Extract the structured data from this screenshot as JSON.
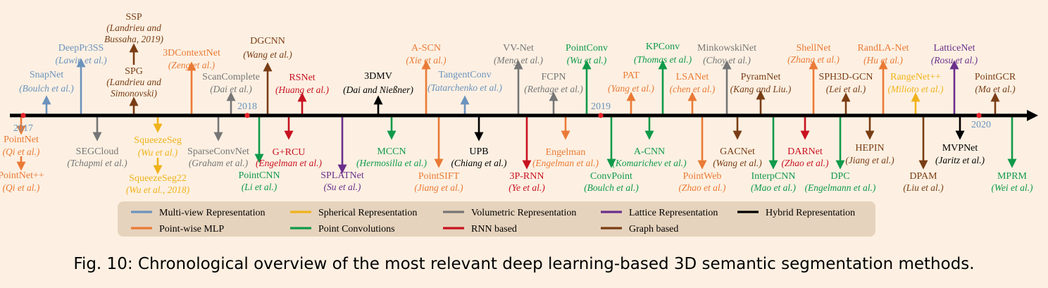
{
  "figure": {
    "caption": "Fig. 10: Chronological overview of the most relevant deep learning-based 3D semantic segmentation methods."
  },
  "colors": {
    "multiview": "#6b93bd",
    "spherical": "#f0b21a",
    "volumetric": "#767676",
    "lattice": "#6a2f8c",
    "hybrid": "#000000",
    "pointwise": "#ea7a35",
    "pointconv": "#0f9a4a",
    "rnn": "#c81220",
    "graph": "#7a3d14"
  },
  "legend": {
    "row1": [
      {
        "key": "multiview",
        "label": "Multi-view Representation"
      },
      {
        "key": "spherical",
        "label": "Spherical Representation"
      },
      {
        "key": "volumetric",
        "label": "Volumetric Representation"
      },
      {
        "key": "lattice",
        "label": "Lattice Representation"
      },
      {
        "key": "hybrid",
        "label": "Hybrid Representation"
      }
    ],
    "row2": [
      {
        "key": "pointwise",
        "label": "Point-wise MLP"
      },
      {
        "key": "pointconv",
        "label": "Point Convolutions"
      },
      {
        "key": "rnn",
        "label": "RNN based"
      },
      {
        "key": "graph",
        "label": "Graph based"
      }
    ]
  },
  "years": [
    "2017",
    "2018",
    "2019",
    "2020"
  ],
  "methods": [
    {
      "name": "SnapNet",
      "authors": "Boulch et al.",
      "cat": "multiview",
      "side": "up"
    },
    {
      "name": "DeepPr3SS",
      "authors": "Lawin et al.",
      "cat": "multiview",
      "side": "up"
    },
    {
      "name": "SPG",
      "authors": "Landrieu and Simonovski",
      "cat": "graph",
      "side": "up"
    },
    {
      "name": "SSP",
      "authors": "Landrieu and Bussaha, 2019",
      "cat": "graph",
      "side": "up"
    },
    {
      "name": "3DContextNet",
      "authors": "Zeng et al.",
      "cat": "pointwise",
      "side": "up"
    },
    {
      "name": "ScanComplete",
      "authors": "Dai et al.",
      "cat": "volumetric",
      "side": "up"
    },
    {
      "name": "DGCNN",
      "authors": "Wang et al.",
      "cat": "graph",
      "side": "up"
    },
    {
      "name": "RSNet",
      "authors": "Huang et al.",
      "cat": "rnn",
      "side": "up"
    },
    {
      "name": "3DMV",
      "authors": "Dai and Nießner",
      "cat": "hybrid",
      "side": "up"
    },
    {
      "name": "A-SCN",
      "authors": "Xie et al.",
      "cat": "pointwise",
      "side": "up"
    },
    {
      "name": "TangentConv",
      "authors": "Tatarchenko et al.",
      "cat": "multiview",
      "side": "up"
    },
    {
      "name": "VV-Net",
      "authors": "Meng et al.",
      "cat": "volumetric",
      "side": "up"
    },
    {
      "name": "FCPN",
      "authors": "Rethage et al.",
      "cat": "volumetric",
      "side": "up"
    },
    {
      "name": "PointConv",
      "authors": "Wu et al.",
      "cat": "pointconv",
      "side": "up"
    },
    {
      "name": "PAT",
      "authors": "Yang et al.",
      "cat": "pointwise",
      "side": "up"
    },
    {
      "name": "KPConv",
      "authors": "Thomas et al.",
      "cat": "pointconv",
      "side": "up"
    },
    {
      "name": "LSANet",
      "authors": "chen et al.",
      "cat": "pointwise",
      "side": "up"
    },
    {
      "name": "MinkowskiNet",
      "authors": "Choy et al.",
      "cat": "volumetric",
      "side": "up"
    },
    {
      "name": "PyramNet",
      "authors": "Kang and Liu.",
      "cat": "graph",
      "side": "up"
    },
    {
      "name": "ShellNet",
      "authors": "Zhang et al.",
      "cat": "pointwise",
      "side": "up"
    },
    {
      "name": "SPH3D-GCN",
      "authors": "Lei et al.",
      "cat": "graph",
      "side": "up"
    },
    {
      "name": "RandLA-Net",
      "authors": "Hu et al.",
      "cat": "pointwise",
      "side": "up"
    },
    {
      "name": "RangeNet++",
      "authors": "Milioto et al.",
      "cat": "spherical",
      "side": "up"
    },
    {
      "name": "LatticeNet",
      "authors": "Rosu et al.",
      "cat": "lattice",
      "side": "up"
    },
    {
      "name": "PointGCR",
      "authors": "Ma et al.",
      "cat": "graph",
      "side": "up"
    },
    {
      "name": "PointNet",
      "authors": "Qi et al.",
      "cat": "pointwise",
      "side": "down"
    },
    {
      "name": "PointNet++",
      "authors": "Qi et al.",
      "cat": "pointwise",
      "side": "down"
    },
    {
      "name": "SEGCloud",
      "authors": "Tchapmi et al.",
      "cat": "volumetric",
      "side": "down"
    },
    {
      "name": "SqueezeSeg",
      "authors": "Wu et al.",
      "cat": "spherical",
      "side": "down"
    },
    {
      "name": "SqueezeSeg22",
      "authors": "Wu et al., 2018",
      "cat": "spherical",
      "side": "down"
    },
    {
      "name": "SparseConvNet",
      "authors": "Graham et al.",
      "cat": "volumetric",
      "side": "down"
    },
    {
      "name": "PointCNN",
      "authors": "Li et al.",
      "cat": "pointconv",
      "side": "down"
    },
    {
      "name": "G+RCU",
      "authors": "Engelman et al.",
      "cat": "rnn",
      "side": "down"
    },
    {
      "name": "SPLATNet",
      "authors": "Su et al.",
      "cat": "lattice",
      "side": "down"
    },
    {
      "name": "MCCN",
      "authors": "Hermosilla et al.",
      "cat": "pointconv",
      "side": "down"
    },
    {
      "name": "PointSIFT",
      "authors": "Jiang et al.",
      "cat": "pointwise",
      "side": "down"
    },
    {
      "name": "UPB",
      "authors": "Chiang et al.",
      "cat": "hybrid",
      "side": "down"
    },
    {
      "name": "3P-RNN",
      "authors": "Ye et al.",
      "cat": "rnn",
      "side": "down"
    },
    {
      "name": "Engelman",
      "authors": "Engelman et al.",
      "cat": "pointwise",
      "side": "down"
    },
    {
      "name": "ConvPoint",
      "authors": "Boulch et al.",
      "cat": "pointconv",
      "side": "down"
    },
    {
      "name": "A-CNN",
      "authors": "Komarichev et al.",
      "cat": "pointconv",
      "side": "down"
    },
    {
      "name": "PointWeb",
      "authors": "Zhao et al.",
      "cat": "pointwise",
      "side": "down"
    },
    {
      "name": "GACNet",
      "authors": "Wang et al.",
      "cat": "graph",
      "side": "down"
    },
    {
      "name": "InterpCNN",
      "authors": "Mao et al.",
      "cat": "pointconv",
      "side": "down"
    },
    {
      "name": "DARNet",
      "authors": "Zhao et al.",
      "cat": "rnn",
      "side": "down"
    },
    {
      "name": "DPC",
      "authors": "Engelmann et al.",
      "cat": "pointconv",
      "side": "down"
    },
    {
      "name": "HEPIN",
      "authors": "Jiang et al.",
      "cat": "graph",
      "side": "down"
    },
    {
      "name": "DPAM",
      "authors": "Liu et al.",
      "cat": "graph",
      "side": "down"
    },
    {
      "name": "MVPNet",
      "authors": "Jaritz et al.",
      "cat": "hybrid",
      "side": "down"
    },
    {
      "name": "MPRM",
      "authors": "Wei et al.",
      "cat": "pointconv",
      "side": "down"
    }
  ]
}
